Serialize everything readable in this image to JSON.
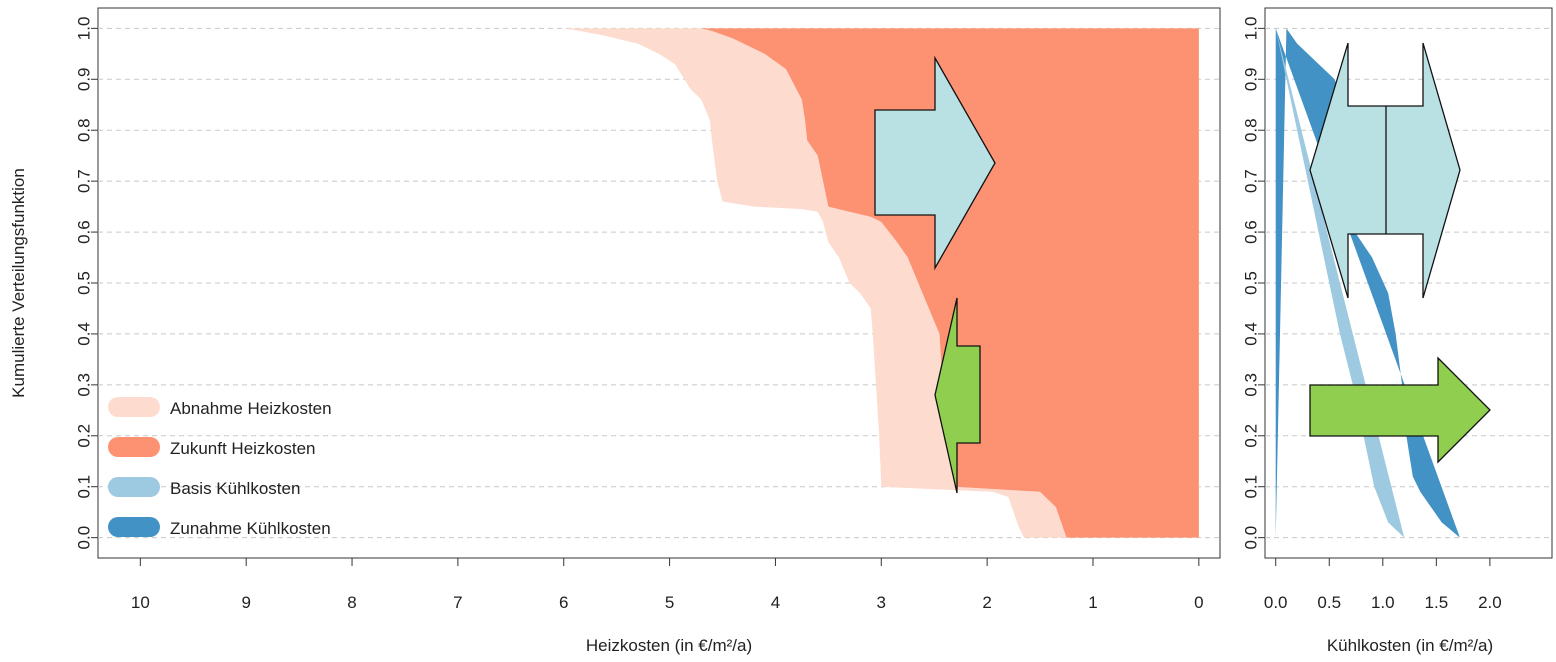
{
  "chart_data": [
    {
      "type": "area",
      "panel": "left",
      "xlabel": "Heizkosten (in €/m²/a)",
      "ylabel": "Kumulierte Verteilungsfunktion",
      "xlim": [
        10.4,
        -0.2
      ],
      "ylim": [
        -0.04,
        1.04
      ],
      "x_reversed": true,
      "xticks": [
        10,
        9,
        8,
        7,
        6,
        5,
        4,
        3,
        2,
        1,
        0
      ],
      "yticks": [
        "0.0",
        "0.1",
        "0.2",
        "0.3",
        "0.4",
        "0.5",
        "0.6",
        "0.7",
        "0.8",
        "0.9",
        "1.0"
      ],
      "grid": "horizontal dashed",
      "series": [
        {
          "name": "Abnahme Heizkosten",
          "color": "#fddccf",
          "curve": [
            [
              1.65,
              0.0
            ],
            [
              1.7,
              0.02
            ],
            [
              1.75,
              0.05
            ],
            [
              1.8,
              0.08
            ],
            [
              1.95,
              0.09
            ],
            [
              2.5,
              0.095
            ],
            [
              3.0,
              0.1
            ],
            [
              3.02,
              0.2
            ],
            [
              3.05,
              0.3
            ],
            [
              3.08,
              0.4
            ],
            [
              3.1,
              0.45
            ],
            [
              3.2,
              0.48
            ],
            [
              3.3,
              0.5
            ],
            [
              3.4,
              0.55
            ],
            [
              3.5,
              0.58
            ],
            [
              3.55,
              0.62
            ],
            [
              3.6,
              0.64
            ],
            [
              3.75,
              0.645
            ],
            [
              4.2,
              0.65
            ],
            [
              4.5,
              0.66
            ],
            [
              4.55,
              0.7
            ],
            [
              4.6,
              0.78
            ],
            [
              4.62,
              0.82
            ],
            [
              4.7,
              0.86
            ],
            [
              4.8,
              0.88
            ],
            [
              4.95,
              0.93
            ],
            [
              5.1,
              0.95
            ],
            [
              5.3,
              0.97
            ],
            [
              5.6,
              0.985
            ],
            [
              5.85,
              0.995
            ],
            [
              6.0,
              1.0
            ]
          ]
        },
        {
          "name": "Zukunft Heizkosten",
          "color": "#fc9272",
          "curve": [
            [
              1.25,
              0.0
            ],
            [
              1.3,
              0.03
            ],
            [
              1.35,
              0.06
            ],
            [
              1.5,
              0.09
            ],
            [
              1.9,
              0.095
            ],
            [
              2.3,
              0.1
            ],
            [
              2.38,
              0.2
            ],
            [
              2.42,
              0.3
            ],
            [
              2.45,
              0.4
            ],
            [
              2.55,
              0.45
            ],
            [
              2.65,
              0.5
            ],
            [
              2.75,
              0.55
            ],
            [
              2.85,
              0.58
            ],
            [
              3.0,
              0.62
            ],
            [
              3.1,
              0.63
            ],
            [
              3.3,
              0.64
            ],
            [
              3.5,
              0.65
            ],
            [
              3.55,
              0.7
            ],
            [
              3.6,
              0.75
            ],
            [
              3.7,
              0.78
            ],
            [
              3.72,
              0.82
            ],
            [
              3.75,
              0.86
            ],
            [
              3.8,
              0.88
            ],
            [
              3.9,
              0.92
            ],
            [
              4.1,
              0.95
            ],
            [
              4.4,
              0.98
            ],
            [
              4.6,
              0.995
            ],
            [
              4.7,
              1.0
            ]
          ]
        }
      ],
      "annotations": [
        {
          "type": "arrow-right",
          "color": "#b9e0e3"
        },
        {
          "type": "arrow-left",
          "color": "#8fce4f"
        }
      ]
    },
    {
      "type": "area",
      "panel": "right",
      "xlabel": "Kühlkosten (in €/m²/a)",
      "ylabel": "",
      "xlim": [
        -0.1,
        2.58
      ],
      "ylim": [
        -0.04,
        1.04
      ],
      "xticks": [
        "0.0",
        "0.5",
        "1.0",
        "1.5",
        "2.0"
      ],
      "yticks": [
        "0.0",
        "0.1",
        "0.2",
        "0.3",
        "0.4",
        "0.5",
        "0.6",
        "0.7",
        "0.8",
        "0.9",
        "1.0"
      ],
      "grid": "horizontal dashed",
      "series": [
        {
          "name": "Basis Kühlkosten",
          "color": "#9ecae1",
          "curve": [
            [
              0.0,
              1.0
            ],
            [
              0.1,
              0.9
            ],
            [
              0.2,
              0.8
            ],
            [
              0.3,
              0.7
            ],
            [
              0.4,
              0.6
            ],
            [
              0.5,
              0.5
            ],
            [
              0.6,
              0.4
            ],
            [
              0.72,
              0.3
            ],
            [
              0.82,
              0.2
            ],
            [
              0.92,
              0.1
            ],
            [
              1.05,
              0.03
            ],
            [
              1.2,
              0.0
            ]
          ]
        },
        {
          "name": "Zunahme Kühlkosten",
          "color": "#4292c6",
          "curve": [
            [
              0.1,
              1.0
            ],
            [
              0.2,
              0.97
            ],
            [
              0.4,
              0.93
            ],
            [
              0.55,
              0.9
            ],
            [
              0.68,
              0.82
            ],
            [
              0.72,
              0.7
            ],
            [
              0.74,
              0.6
            ],
            [
              0.9,
              0.55
            ],
            [
              1.05,
              0.48
            ],
            [
              1.12,
              0.4
            ],
            [
              1.18,
              0.3
            ],
            [
              1.22,
              0.2
            ],
            [
              1.28,
              0.12
            ],
            [
              1.35,
              0.09
            ],
            [
              1.45,
              0.06
            ],
            [
              1.55,
              0.03
            ],
            [
              1.72,
              0.0
            ]
          ]
        }
      ],
      "annotations": [
        {
          "type": "arrow-double",
          "color": "#b9e0e3"
        },
        {
          "type": "arrow-right",
          "color": "#8fce4f"
        }
      ]
    }
  ],
  "legend": {
    "items": [
      {
        "label": "Abnahme Heizkosten",
        "color": "#fddccf"
      },
      {
        "label": "Zukunft Heizkosten",
        "color": "#fc9272"
      },
      {
        "label": "Basis Kühlkosten",
        "color": "#9ecae1"
      },
      {
        "label": "Zunahme Kühlkosten",
        "color": "#4292c6"
      }
    ]
  }
}
